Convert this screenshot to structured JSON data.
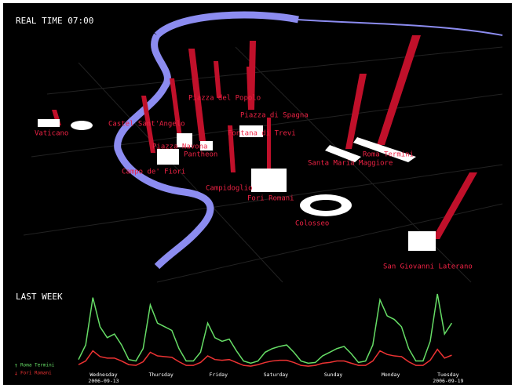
{
  "header": {
    "title": "REAL TIME 07:00"
  },
  "map": {
    "landmarks": [
      {
        "label": "Vaticano"
      },
      {
        "label": "Castel Sant'Angelo"
      },
      {
        "label": "Piazza del Popolo"
      },
      {
        "label": "Piazza di Spagna"
      },
      {
        "label": "Fontana di Trevi"
      },
      {
        "label": "Piazza Navona"
      },
      {
        "label": "Pantheon"
      },
      {
        "label": "Campo de' Fiori"
      },
      {
        "label": "Campidoglio"
      },
      {
        "label": "Fori Romani"
      },
      {
        "label": "Santa Maria Maggiore"
      },
      {
        "label": "Roma Termini"
      },
      {
        "label": "Colosseo"
      },
      {
        "label": "San Giovanni Laterano"
      }
    ]
  },
  "chart_data": {
    "type": "line",
    "title": "LAST WEEK",
    "ylim": [
      0,
      100
    ],
    "days": [
      {
        "label": "Wednesday",
        "date": "2006-09-13"
      },
      {
        "label": "Thursday"
      },
      {
        "label": "Friday"
      },
      {
        "label": "Saturday"
      },
      {
        "label": "Sunday"
      },
      {
        "label": "Monday"
      },
      {
        "label": "Tuesday",
        "date": "2006-09-19"
      }
    ],
    "series": [
      {
        "name": "Roma Termini",
        "color": "#66dd66",
        "values": [
          10,
          30,
          95,
          55,
          40,
          45,
          30,
          10,
          8,
          25,
          85,
          60,
          55,
          50,
          25,
          8,
          8,
          20,
          60,
          40,
          35,
          38,
          22,
          8,
          5,
          8,
          20,
          25,
          28,
          30,
          20,
          8,
          5,
          6,
          15,
          20,
          25,
          28,
          18,
          6,
          8,
          30,
          92,
          70,
          65,
          55,
          25,
          8,
          8,
          35,
          100,
          45,
          60
        ]
      },
      {
        "name": "Fori Romani",
        "color": "#ee3333",
        "values": [
          3,
          8,
          22,
          14,
          12,
          12,
          8,
          3,
          2,
          7,
          20,
          15,
          14,
          13,
          7,
          2,
          2,
          6,
          15,
          10,
          9,
          10,
          6,
          2,
          1,
          3,
          6,
          8,
          9,
          9,
          6,
          2,
          1,
          2,
          5,
          6,
          8,
          8,
          5,
          2,
          2,
          8,
          22,
          17,
          15,
          14,
          7,
          2,
          2,
          9,
          24,
          12,
          16
        ]
      }
    ]
  }
}
